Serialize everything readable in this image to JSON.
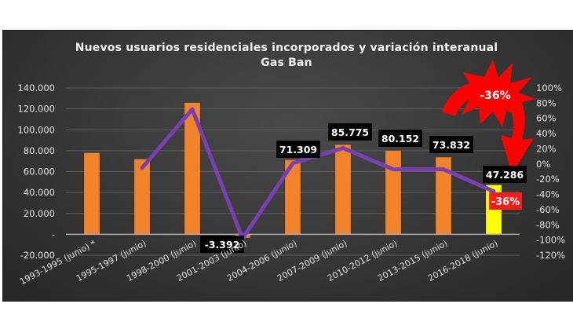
{
  "chart_data": {
    "type": "bar+line",
    "title": "Nuevos usuarios residenciales  incorporados  y variación  interanual",
    "subtitle": "Gas Ban",
    "categories": [
      "1993-1995 (junio) *",
      "1995-1997 (junio)",
      "1998-2000 (junio)",
      "2001-2003 (junio)",
      "2004-2006 (junio)",
      "2007-2009 (junio)",
      "2010-2012 (junio)",
      "2013-2015 (junio)",
      "2016-2018 (junio)"
    ],
    "series": [
      {
        "name": "Nuevos usuarios residenciales",
        "type": "bar",
        "axis": "left",
        "values": [
          78000,
          72000,
          126000,
          -3392,
          71309,
          85775,
          80152,
          73832,
          47286
        ],
        "colors": [
          "#f0832b",
          "#f0832b",
          "#f0832b",
          "#f0832b",
          "#f0832b",
          "#f0832b",
          "#f0832b",
          "#f0832b",
          "#ffff00"
        ]
      },
      {
        "name": "Variación interanual",
        "type": "line",
        "axis": "right",
        "color": "#7b3fb5",
        "values": [
          null,
          -5,
          72,
          -98,
          1,
          21,
          -7,
          -7,
          -36
        ]
      }
    ],
    "data_labels": [
      {
        "category": "2001-2003 (junio)",
        "text": "-3.392"
      },
      {
        "category": "2004-2006 (junio)",
        "text": "71.309"
      },
      {
        "category": "2007-2009 (junio)",
        "text": "85.775"
      },
      {
        "category": "2010-2012 (junio)",
        "text": "80.152"
      },
      {
        "category": "2013-2015 (junio)",
        "text": "73.832"
      },
      {
        "category": "2016-2018 (junio)",
        "text": "47.286"
      }
    ],
    "annotations": [
      {
        "text": "-36%",
        "style": "red starburst with curved arrow"
      },
      {
        "text": "-36%",
        "style": "red label box on last bar"
      }
    ],
    "left_axis": {
      "ylim": [
        -20000,
        140000
      ],
      "ticks": [
        "140.000",
        "120.000",
        "100.000",
        "80.000",
        "60.000",
        "40.000",
        "20.000",
        "-",
        "-20.000"
      ]
    },
    "right_axis": {
      "ylim": [
        -120,
        100
      ],
      "ticks": [
        "100%",
        "80%",
        "60%",
        "40%",
        "20%",
        "0%",
        "-20%",
        "-40%",
        "-60%",
        "-80%",
        "-100%",
        "-120%"
      ]
    },
    "grid": true,
    "legend": "none"
  },
  "callouts": {
    "burst_text": "-36%",
    "last_bar_pct": "-36%"
  }
}
